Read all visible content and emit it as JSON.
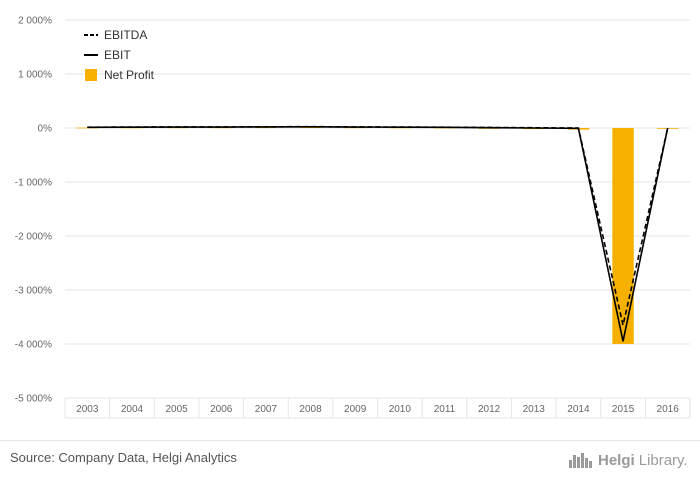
{
  "chart_data": {
    "type": "line",
    "categories": [
      "2003",
      "2004",
      "2005",
      "2006",
      "2007",
      "2008",
      "2009",
      "2010",
      "2011",
      "2012",
      "2013",
      "2014",
      "2015",
      "2016"
    ],
    "series": [
      {
        "name": "EBITDA",
        "kind": "line",
        "style": "dashed",
        "color": "#000000",
        "values": [
          15,
          18,
          20,
          20,
          22,
          25,
          20,
          18,
          15,
          10,
          5,
          0,
          -3650,
          0
        ]
      },
      {
        "name": "EBIT",
        "kind": "line",
        "style": "solid",
        "color": "#000000",
        "values": [
          12,
          15,
          18,
          18,
          20,
          22,
          18,
          15,
          12,
          5,
          0,
          -5,
          -3950,
          0
        ]
      },
      {
        "name": "Net Profit",
        "kind": "bar",
        "color": "#f5b000",
        "values": [
          8,
          10,
          12,
          12,
          14,
          16,
          12,
          10,
          8,
          -5,
          -20,
          -30,
          -4000,
          0
        ]
      }
    ],
    "yticks": [
      2000,
      1000,
      0,
      -1000,
      -2000,
      -3000,
      -4000,
      -5000
    ],
    "ytick_labels": [
      "2 000%",
      "1 000%",
      "0%",
      "-1 000%",
      "-2 000%",
      "-3 000%",
      "-4 000%",
      "-5 000%"
    ],
    "ylim": [
      -5000,
      2000
    ],
    "grid": true,
    "legend_position": "top-left"
  },
  "footer": {
    "source": "Source: Company Data, Helgi Analytics",
    "brand_part1": "Helgi",
    "brand_part2": "Library."
  }
}
